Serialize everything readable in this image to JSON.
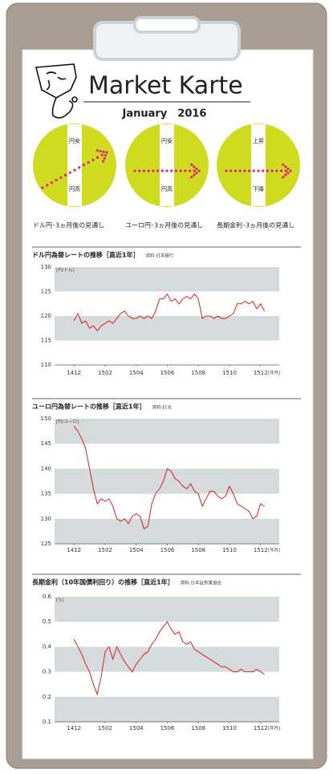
{
  "header": {
    "title": "Market Karte",
    "date": "January　2016"
  },
  "outlooks": [
    {
      "top": "円安",
      "bottom": "円高",
      "caption": "ドル円･3ヵ月後の見通し",
      "arrow": "up-right"
    },
    {
      "top": "円安",
      "bottom": "円高",
      "caption": "ユーロ円･3ヵ月後の見通し",
      "arrow": "right"
    },
    {
      "top": "上昇",
      "bottom": "下降",
      "caption": "長期金利･3ヵ月後の見通し",
      "arrow": "right"
    }
  ],
  "chart_data": [
    {
      "type": "line",
      "title": "ドル円為替レートの推移［直近1年］",
      "source": "資料:日本銀行",
      "y_unit": "[円/ドル]",
      "x_unit": "[年月]",
      "color": "#d42027",
      "grid": "bands",
      "ylim": [
        110,
        130
      ],
      "yticks": [
        110,
        115,
        120,
        125,
        130
      ],
      "xlim": [
        -1.25,
        13.2
      ],
      "xticks": [
        {
          "value": 0,
          "label": "1412"
        },
        {
          "value": 2,
          "label": "1502"
        },
        {
          "value": 4,
          "label": "1504"
        },
        {
          "value": 6,
          "label": "1506"
        },
        {
          "value": 8,
          "label": "1508"
        },
        {
          "value": 10,
          "label": "1510"
        },
        {
          "value": 12,
          "label": "1512"
        }
      ],
      "x": [
        0,
        0.25,
        0.5,
        0.75,
        1,
        1.25,
        1.5,
        1.75,
        2,
        2.25,
        2.5,
        2.75,
        3,
        3.25,
        3.5,
        3.75,
        4,
        4.25,
        4.5,
        4.75,
        5,
        5.25,
        5.5,
        5.75,
        6,
        6.25,
        6.5,
        6.75,
        7,
        7.25,
        7.5,
        7.75,
        8,
        8.25,
        8.5,
        8.75,
        9,
        9.25,
        9.5,
        9.75,
        10,
        10.25,
        10.5,
        10.75,
        11,
        11.25,
        11.5,
        11.75,
        12,
        12.25
      ],
      "values": [
        119,
        120.5,
        118.5,
        119,
        117.5,
        118,
        117,
        118,
        118.5,
        119,
        118.5,
        119.5,
        120.5,
        121,
        120,
        119.5,
        119.5,
        120,
        119.5,
        120,
        119.5,
        121,
        123.5,
        123.5,
        124.5,
        123,
        123.5,
        122.5,
        123.5,
        124,
        123.5,
        124.5,
        123.5,
        119.5,
        120,
        120,
        119.5,
        120,
        119.5,
        119.5,
        120,
        120.5,
        122.5,
        122.5,
        123,
        122.5,
        123,
        121.5,
        122.5,
        121
      ]
    },
    {
      "type": "line",
      "title": "ユーロ円為替レートの推移［直近1年］",
      "source": "資料:ECB",
      "y_unit": "[円/ユーロ]",
      "x_unit": "[年月]",
      "color": "#d42027",
      "grid": "bands",
      "ylim": [
        125,
        150
      ],
      "yticks": [
        125,
        130,
        135,
        140,
        145,
        150
      ],
      "xlim": [
        -1.25,
        13.2
      ],
      "xticks": [
        {
          "value": 0,
          "label": "1412"
        },
        {
          "value": 2,
          "label": "1502"
        },
        {
          "value": 4,
          "label": "1504"
        },
        {
          "value": 6,
          "label": "1506"
        },
        {
          "value": 8,
          "label": "1508"
        },
        {
          "value": 10,
          "label": "1510"
        },
        {
          "value": 12,
          "label": "1512"
        }
      ],
      "x": [
        0,
        0.25,
        0.5,
        0.75,
        1,
        1.25,
        1.5,
        1.75,
        2,
        2.25,
        2.5,
        2.75,
        3,
        3.25,
        3.5,
        3.75,
        4,
        4.25,
        4.5,
        4.75,
        5,
        5.25,
        5.5,
        5.75,
        6,
        6.25,
        6.5,
        6.75,
        7,
        7.25,
        7.5,
        7.75,
        8,
        8.25,
        8.5,
        8.75,
        9,
        9.25,
        9.5,
        9.75,
        10,
        10.25,
        10.5,
        10.75,
        11,
        11.25,
        11.5,
        11.75,
        12,
        12.25
      ],
      "values": [
        148.5,
        147.5,
        146,
        144,
        140,
        136,
        133,
        134,
        133.5,
        134,
        132.5,
        130,
        129.5,
        130,
        129,
        130.5,
        131,
        130.5,
        128,
        128.5,
        133,
        135,
        136,
        137.5,
        140,
        139.5,
        138,
        137.5,
        136.5,
        136,
        137,
        135.5,
        135,
        132.5,
        134,
        135.5,
        135.5,
        134.5,
        134,
        134.5,
        136.5,
        135,
        133,
        132.5,
        132,
        131.5,
        130,
        130.5,
        133,
        132.5
      ]
    },
    {
      "type": "line",
      "title": "長期金利（10年国債利回り）の推移［直近1年］",
      "source": "資料:日本証券業協会",
      "y_unit": "[%]",
      "x_unit": "[年月]",
      "color": "#d42027",
      "grid": "bands",
      "ylim": [
        0.1,
        0.6
      ],
      "yticks": [
        0.1,
        0.2,
        0.3,
        0.4,
        0.5,
        0.6
      ],
      "xlim": [
        -1.25,
        13.2
      ],
      "xticks": [
        {
          "value": 0,
          "label": "1412"
        },
        {
          "value": 2,
          "label": "1502"
        },
        {
          "value": 4,
          "label": "1504"
        },
        {
          "value": 6,
          "label": "1506"
        },
        {
          "value": 8,
          "label": "1508"
        },
        {
          "value": 10,
          "label": "1510"
        },
        {
          "value": 12,
          "label": "1512"
        }
      ],
      "x": [
        0,
        0.25,
        0.5,
        0.75,
        1,
        1.25,
        1.5,
        1.75,
        2,
        2.25,
        2.5,
        2.75,
        3,
        3.25,
        3.5,
        3.75,
        4,
        4.25,
        4.5,
        4.75,
        5,
        5.25,
        5.5,
        5.75,
        6,
        6.25,
        6.5,
        6.75,
        7,
        7.25,
        7.5,
        7.75,
        8,
        8.25,
        8.5,
        8.75,
        9,
        9.25,
        9.5,
        9.75,
        10,
        10.25,
        10.5,
        10.75,
        11,
        11.25,
        11.5,
        11.75,
        12,
        12.25
      ],
      "values": [
        0.43,
        0.4,
        0.37,
        0.33,
        0.3,
        0.25,
        0.21,
        0.28,
        0.38,
        0.4,
        0.35,
        0.4,
        0.37,
        0.34,
        0.32,
        0.3,
        0.33,
        0.35,
        0.37,
        0.38,
        0.41,
        0.43,
        0.46,
        0.48,
        0.5,
        0.47,
        0.45,
        0.46,
        0.42,
        0.41,
        0.42,
        0.39,
        0.38,
        0.37,
        0.36,
        0.35,
        0.34,
        0.33,
        0.32,
        0.32,
        0.31,
        0.3,
        0.3,
        0.31,
        0.3,
        0.3,
        0.3,
        0.31,
        0.3,
        0.29
      ]
    }
  ]
}
